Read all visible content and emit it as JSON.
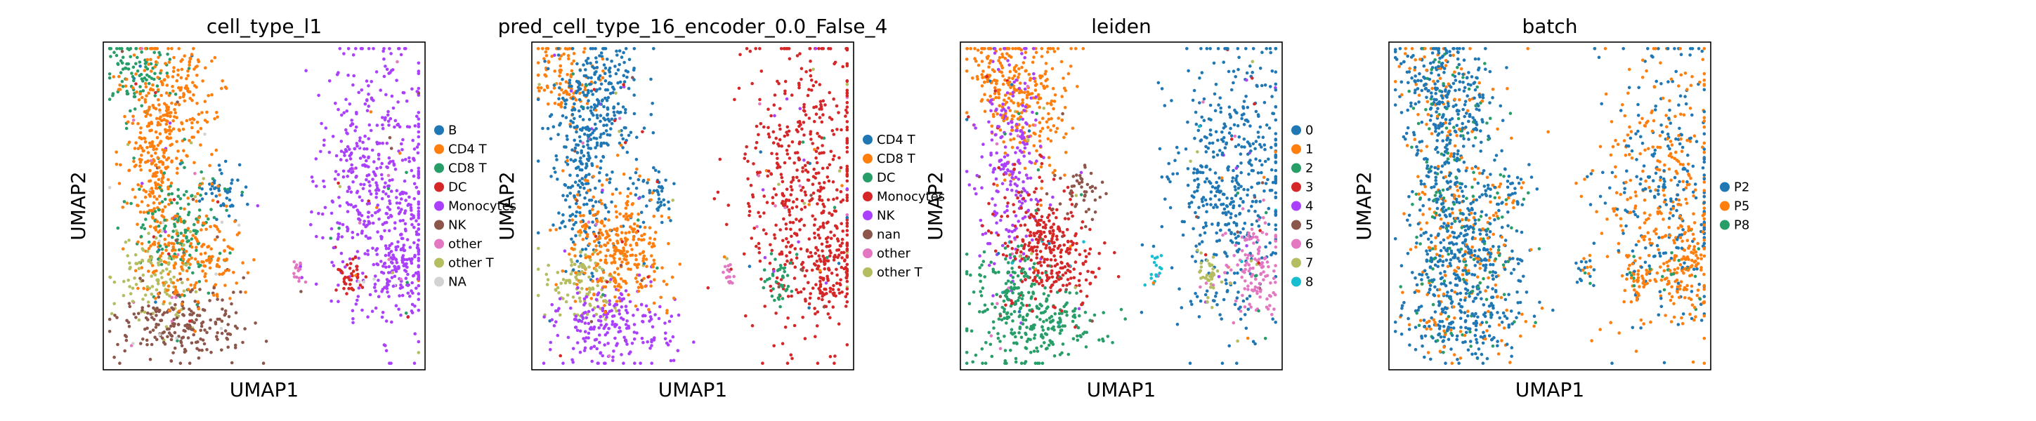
{
  "chart_data": [
    {
      "type": "scatter",
      "title": "cell_type_l1",
      "xlabel": "UMAP1",
      "ylabel": "UMAP2",
      "legend": "right",
      "grid": false,
      "series": [
        {
          "name": "B",
          "color": "#1f77b4"
        },
        {
          "name": "CD4 T",
          "color": "#ff7f0e"
        },
        {
          "name": "CD8 T",
          "color": "#279e68"
        },
        {
          "name": "DC",
          "color": "#d62728"
        },
        {
          "name": "Monocytes",
          "color": "#aa40fc"
        },
        {
          "name": "NK",
          "color": "#8c564b"
        },
        {
          "name": "other",
          "color": "#e377c2"
        },
        {
          "name": "other T",
          "color": "#b5bd61"
        },
        {
          "name": "NA",
          "color": "#d3d3d3"
        }
      ]
    },
    {
      "type": "scatter",
      "title": "pred_cell_type_16_encoder_0.0_False_4",
      "xlabel": "UMAP1",
      "ylabel": "UMAP2",
      "legend": "right",
      "grid": false,
      "series": [
        {
          "name": "CD4 T",
          "color": "#1f77b4"
        },
        {
          "name": "CD8 T",
          "color": "#ff7f0e"
        },
        {
          "name": "DC",
          "color": "#279e68"
        },
        {
          "name": "Monocytes",
          "color": "#d62728"
        },
        {
          "name": "NK",
          "color": "#aa40fc"
        },
        {
          "name": "nan",
          "color": "#8c564b"
        },
        {
          "name": "other",
          "color": "#e377c2"
        },
        {
          "name": "other T",
          "color": "#b5bd61"
        }
      ]
    },
    {
      "type": "scatter",
      "title": "leiden",
      "xlabel": "UMAP1",
      "ylabel": "UMAP2",
      "legend": "right",
      "grid": false,
      "series": [
        {
          "name": "0",
          "color": "#1f77b4"
        },
        {
          "name": "1",
          "color": "#ff7f0e"
        },
        {
          "name": "2",
          "color": "#279e68"
        },
        {
          "name": "3",
          "color": "#d62728"
        },
        {
          "name": "4",
          "color": "#aa40fc"
        },
        {
          "name": "5",
          "color": "#8c564b"
        },
        {
          "name": "6",
          "color": "#e377c2"
        },
        {
          "name": "7",
          "color": "#b5bd61"
        },
        {
          "name": "8",
          "color": "#17becf"
        }
      ]
    },
    {
      "type": "scatter",
      "title": "batch",
      "xlabel": "UMAP1",
      "ylabel": "UMAP2",
      "legend": "right",
      "grid": false,
      "series": [
        {
          "name": "P2",
          "color": "#1f77b4"
        },
        {
          "name": "P5",
          "color": "#ff7f0e"
        },
        {
          "name": "P8",
          "color": "#279e68"
        }
      ]
    }
  ]
}
